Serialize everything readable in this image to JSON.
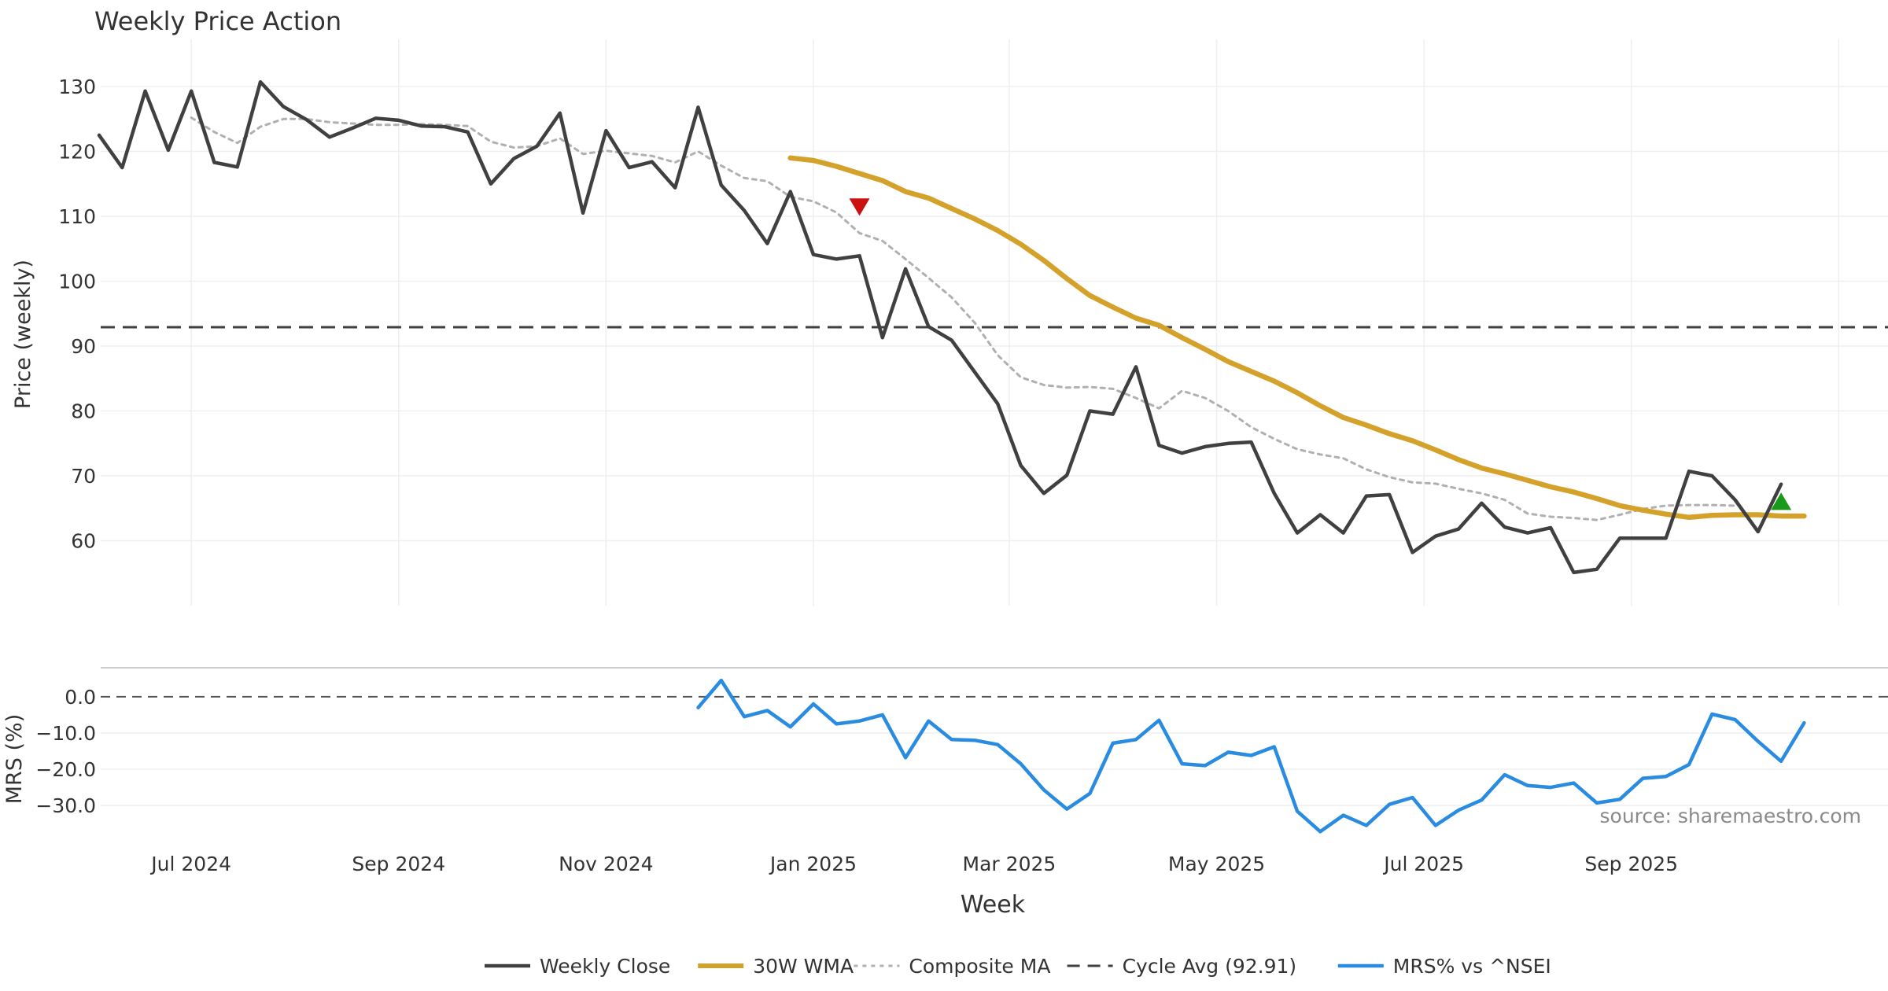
{
  "chart_data": {
    "type": "line",
    "title": "Weekly Price Action",
    "xlabel": "Week",
    "x_ticks": [
      "Jul 2024",
      "Sep 2024",
      "Nov 2024",
      "Jan 2025",
      "Mar 2025",
      "May 2025",
      "Jul 2025",
      "Sep 2025"
    ],
    "x_tick_weeks": [
      4,
      13,
      22,
      31,
      39.5,
      48.5,
      57.5,
      66.5
    ],
    "x_range": [
      0,
      76
    ],
    "source": "source: sharemaestro.com",
    "price_panel": {
      "ylabel": "Price (weekly)",
      "ylim": [
        50,
        134
      ],
      "yticks": [
        "130",
        "120",
        "110",
        "100",
        "90",
        "80",
        "70",
        "60"
      ],
      "ytick_values": [
        130,
        120,
        110,
        100,
        90,
        80,
        70,
        60
      ],
      "series": [
        {
          "name": "Weekly Close",
          "color": "#404040",
          "start_week": 0,
          "values": [
            122.5,
            117.5,
            129.3,
            120.2,
            129.3,
            118.3,
            117.6,
            130.7,
            126.9,
            124.9,
            122.2,
            123.6,
            125.1,
            124.8,
            123.9,
            123.8,
            123.0,
            115.0,
            118.9,
            120.8,
            125.9,
            110.5,
            123.2,
            117.5,
            118.4,
            114.4,
            126.8,
            114.8,
            110.9,
            105.8,
            113.8,
            104.1,
            103.4,
            103.9,
            91.3,
            101.9,
            93.0,
            90.9,
            86.0,
            81.1,
            71.6,
            67.3,
            70.1,
            80.0,
            79.5,
            86.8,
            74.7,
            73.5,
            74.5,
            75.0,
            75.2,
            67.3,
            61.2,
            64.0,
            61.2,
            66.9,
            67.1,
            58.2,
            60.7,
            61.8,
            65.8,
            62.1,
            61.2,
            62.0,
            55.1,
            55.6,
            60.4,
            60.4,
            60.4,
            70.7,
            70.0,
            66.3,
            61.4,
            68.7
          ]
        },
        {
          "name": "30W WMA",
          "color": "#d4a22a",
          "start_week": 30,
          "values": [
            119.0,
            118.6,
            117.7,
            116.6,
            115.5,
            113.8,
            112.8,
            111.2,
            109.6,
            107.8,
            105.7,
            103.2,
            100.4,
            97.8,
            96.0,
            94.3,
            93.2,
            91.3,
            89.5,
            87.6,
            86.1,
            84.6,
            82.8,
            80.8,
            79.0,
            77.8,
            76.5,
            75.4,
            74.0,
            72.5,
            71.2,
            70.3,
            69.3,
            68.3,
            67.5,
            66.5,
            65.4,
            64.7,
            64.1,
            63.6,
            63.9,
            64.0,
            64.0,
            63.8,
            63.8
          ]
        },
        {
          "name": "Composite MA",
          "color": "#b0b0b0",
          "start_week": 4,
          "values": [
            125.2,
            123.0,
            121.3,
            123.8,
            125.0,
            125.0,
            124.5,
            124.3,
            124.1,
            124.1,
            124.2,
            124.1,
            123.9,
            121.5,
            120.6,
            120.8,
            122.0,
            119.6,
            120.1,
            119.7,
            119.3,
            118.3,
            120.0,
            117.8,
            115.9,
            115.4,
            113.0,
            112.3,
            110.6,
            107.4,
            106.2,
            103.4,
            100.5,
            97.5,
            93.6,
            88.6,
            85.2,
            84.0,
            83.6,
            83.7,
            83.4,
            82.0,
            80.4,
            83.1,
            82.0,
            80.0,
            77.5,
            75.7,
            74.1,
            73.3,
            72.7,
            71.0,
            69.8,
            69.0,
            68.8,
            68.0,
            67.3,
            66.3,
            64.2,
            63.7,
            63.5,
            63.2,
            64.0,
            64.9,
            65.4,
            65.5,
            65.5,
            65.4
          ]
        }
      ],
      "cycle_avg": {
        "name": "Cycle Avg (92.91)",
        "value": 92.91,
        "color": "#404040"
      },
      "markers": [
        {
          "type": "sell",
          "shape": "down-triangle",
          "week": 33,
          "value": 111.5,
          "color": "#cc1111"
        },
        {
          "type": "buy",
          "shape": "up-triangle",
          "week": 73,
          "value": 66.0,
          "color": "#1a9a1a"
        }
      ]
    },
    "mrs_panel": {
      "ylabel": "MRS (%)",
      "ylim": [
        -38,
        8
      ],
      "yticks": [
        "0.0",
        "−10.0",
        "−20.0",
        "−30.0"
      ],
      "ytick_values": [
        0,
        -10,
        -20,
        -30
      ],
      "zero_line": 0,
      "series": {
        "name": "MRS% vs ^NSEI",
        "color": "#2a8ce0",
        "start_week": 26,
        "values": [
          -3.0,
          4.5,
          -5.5,
          -3.8,
          -8.3,
          -2.0,
          -7.5,
          -6.7,
          -5.0,
          -16.8,
          -6.7,
          -11.8,
          -12.0,
          -13.2,
          -18.5,
          -25.7,
          -31.0,
          -26.7,
          -12.8,
          -11.8,
          -6.5,
          -18.5,
          -19.0,
          -15.3,
          -16.2,
          -13.8,
          -31.6,
          -37.2,
          -32.7,
          -35.5,
          -29.7,
          -27.8,
          -35.5,
          -31.3,
          -28.5,
          -21.5,
          -24.5,
          -25.0,
          -23.8,
          -29.3,
          -28.3,
          -22.5,
          -22.0,
          -18.7,
          -4.8,
          -6.3,
          -12.3,
          -17.8,
          -7.2
        ]
      }
    },
    "legend": {
      "placement": "bottom-center",
      "entries": [
        {
          "label": "Weekly Close",
          "style": "solid",
          "color": "#404040"
        },
        {
          "label": "30W WMA",
          "style": "solid-thick",
          "color": "#d4a22a"
        },
        {
          "label": "Composite MA",
          "style": "dotted",
          "color": "#b0b0b0"
        },
        {
          "label": "Cycle Avg (92.91)",
          "style": "dashed",
          "color": "#404040"
        },
        {
          "label": "MRS% vs ^NSEI",
          "style": "solid",
          "color": "#2a8ce0"
        }
      ]
    }
  }
}
